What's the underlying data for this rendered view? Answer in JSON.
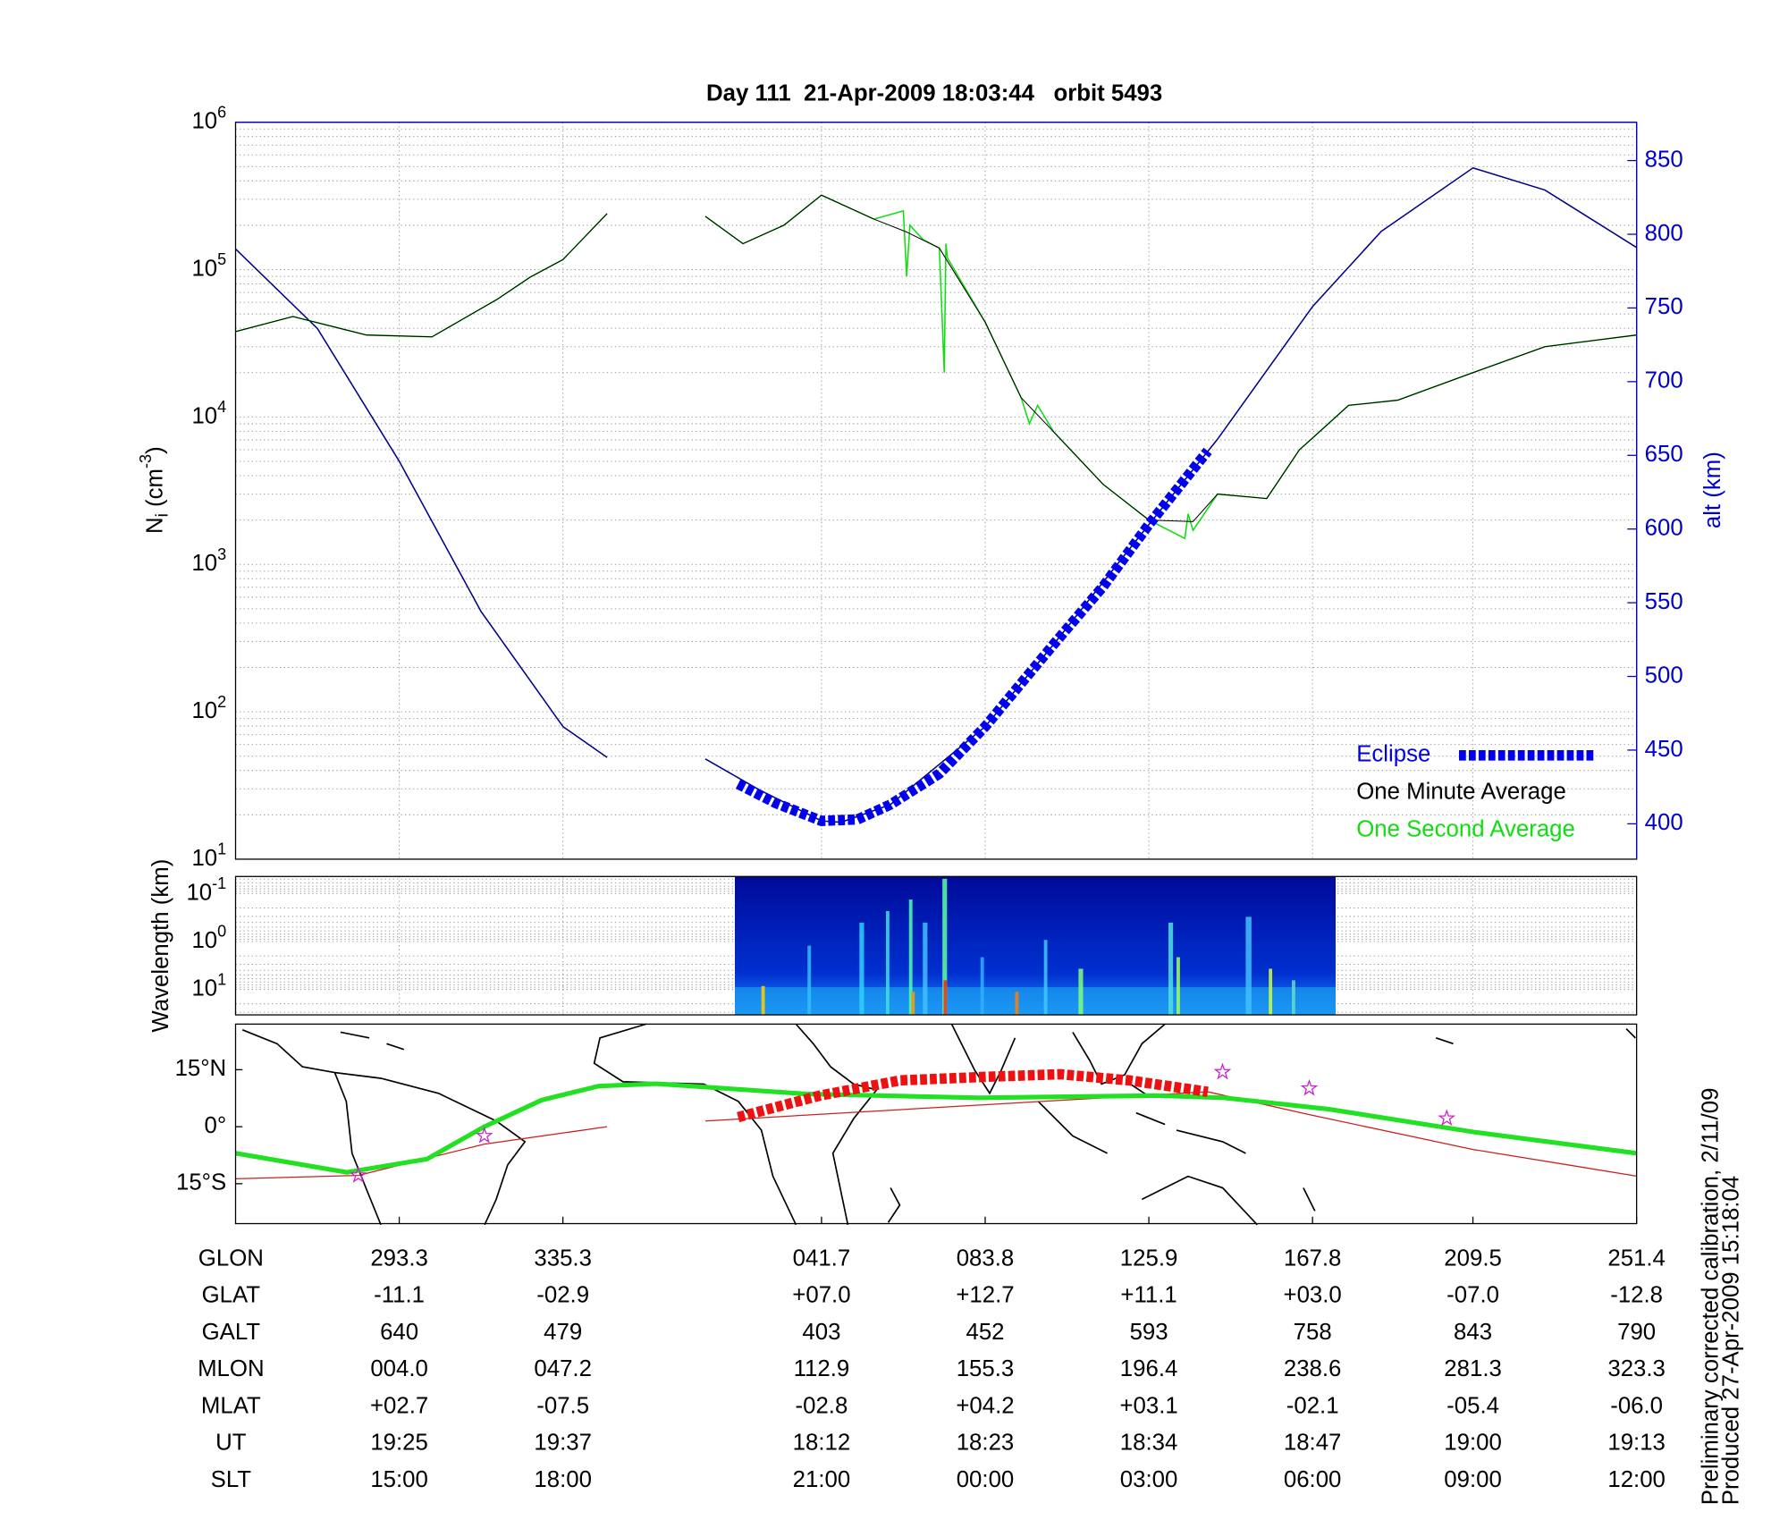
{
  "chart_data": [
    {
      "type": "line",
      "title": "Day 111  21-Apr-2009 18:03:44   orbit 5493",
      "ylabel": {
        "base": "N",
        "sub": "i",
        "unit": " (cm",
        "sup": "-3",
        "end": ")"
      },
      "y2label": "alt (km)",
      "xlim": [
        0,
        8.56
      ],
      "xticks": [
        1,
        2,
        3.58,
        4.58,
        5.58,
        6.58,
        7.56,
        8.56
      ],
      "yscale": "log",
      "ylim": [
        10,
        1000000
      ],
      "yticks": [
        {
          "value": 10,
          "label": "10",
          "sup": "1"
        },
        {
          "value": 100,
          "label": "10",
          "sup": "2"
        },
        {
          "value": 1000,
          "label": "10",
          "sup": "3"
        },
        {
          "value": 10000,
          "label": "10",
          "sup": "4"
        },
        {
          "value": 100000,
          "label": "10",
          "sup": "5"
        },
        {
          "value": 1000000,
          "label": "10",
          "sup": "6"
        }
      ],
      "y2lim": [
        376,
        876
      ],
      "y2ticks": [
        400,
        450,
        500,
        550,
        600,
        650,
        700,
        750,
        800,
        850
      ],
      "y2color": "#0000cc",
      "grid": true,
      "legend": "lower right",
      "series": [
        {
          "name": "Eclipse",
          "color": "#0000ee",
          "axis": "y2",
          "style": "dashed",
          "x": [
            3.07,
            3.3,
            3.58,
            3.8,
            4,
            4.3,
            4.58,
            5,
            5.3,
            5.58,
            5.94
          ],
          "values": [
            427,
            414,
            402,
            403,
            413,
            434,
            466,
            522,
            561,
            603,
            653
          ]
        },
        {
          "name": "One Minute Average",
          "color": "#000000",
          "x": [
            0,
            0.35,
            0.8,
            1.2,
            1.6,
            1.8,
            2,
            2.27,
            2.5,
            2.87,
            3.1,
            3.35,
            3.58,
            3.9,
            4.1,
            4.3,
            4.58,
            4.8,
            5,
            5.3,
            5.58,
            5.85,
            6,
            6.3,
            6.5,
            6.58,
            6.8,
            7.1,
            7.56,
            8,
            8.56
          ],
          "values": [
            38000,
            48000,
            36000,
            35000,
            63000,
            89000,
            117000,
            240000,
            null,
            230000,
            150000,
            200000,
            320000,
            220000,
            180000,
            140000,
            44000,
            13500,
            7900,
            3500,
            2000,
            1950,
            3000,
            2800,
            6000,
            7200,
            12000,
            13000,
            20000,
            30000,
            36000
          ]
        },
        {
          "name": "One Second Average",
          "color": "#11dd11",
          "x": [
            0,
            0.35,
            0.8,
            1.2,
            1.6,
            1.8,
            2,
            2.27,
            2.5,
            2.87,
            3.1,
            3.35,
            3.58,
            3.9,
            4.08,
            4.1,
            4.12,
            4.2,
            4.3,
            4.33,
            4.34,
            4.35,
            4.58,
            4.8,
            4.85,
            4.9,
            5,
            5.3,
            5.58,
            5.8,
            5.82,
            5.85,
            6,
            6.3,
            6.5,
            6.58,
            6.8,
            7.1,
            7.56,
            8,
            8.56
          ],
          "values": [
            38000,
            48000,
            36000,
            35000,
            63000,
            89000,
            117000,
            240000,
            null,
            230000,
            150000,
            200000,
            320000,
            220000,
            250000,
            90000,
            200000,
            160000,
            140000,
            20000,
            150000,
            120000,
            44000,
            13500,
            9000,
            12000,
            7900,
            3500,
            2000,
            1500,
            2200,
            1700,
            3000,
            2800,
            6000,
            7200,
            12000,
            13000,
            20000,
            30000,
            36000
          ]
        },
        {
          "color": "#00008b",
          "axis": "y2",
          "x": [
            0,
            0.5,
            1,
            1.5,
            2,
            2.27,
            2.5,
            2.87,
            3.2,
            3.58,
            3.7,
            4,
            4.58,
            5,
            5.58,
            6,
            6.58,
            7,
            7.56,
            8,
            8.56
          ],
          "values": [
            790,
            736,
            646,
            544,
            466,
            445,
            null,
            444,
            423,
            402,
            401,
            413,
            466,
            522,
            603,
            661,
            751,
            802,
            845,
            830,
            791
          ]
        }
      ]
    },
    {
      "type": "spectrogram",
      "ylabel": "Wavelength (km)",
      "yscale": "log",
      "ylim": [
        0.044,
        34
      ],
      "xlim": [
        0,
        8.56
      ],
      "xticks": [
        1,
        2,
        3.58,
        4.58,
        5.58,
        6.58,
        7.56,
        8.56
      ],
      "yticks": [
        {
          "value": 0.1,
          "label": "10",
          "sup": "-1"
        },
        {
          "value": 1,
          "label": "10",
          "sup": "0"
        },
        {
          "value": 10,
          "label": "10",
          "sup": "1"
        }
      ]
    },
    {
      "type": "map",
      "ylim": [
        -25.5,
        27
      ],
      "xlim": [
        0,
        8.56
      ],
      "xticks": [
        1,
        2,
        3.58,
        4.58,
        5.58,
        6.58,
        7.56,
        8.56
      ],
      "yticks": [
        {
          "value": 15,
          "label": "15°N"
        },
        {
          "value": 0,
          "label": "0°"
        },
        {
          "value": -15,
          "label": "15°S"
        }
      ],
      "series": [
        {
          "color": "#cc2020",
          "width": 1,
          "x": [
            0,
            0.75,
            1.52,
            2.27,
            2.5,
            2.87,
            5.94,
            6.57,
            7.56,
            8.56
          ],
          "values": [
            -13.7,
            -12.8,
            -4.6,
            0,
            null,
            1.5,
            9.2,
            3.1,
            -6,
            -13
          ]
        },
        {
          "color": "#22e022",
          "width": 4,
          "x": [
            0,
            0.68,
            1.17,
            1.52,
            1.87,
            2.22,
            2.57,
            3.49,
            4.54,
            5.63,
            6.04,
            6.68,
            7.58,
            8.56
          ],
          "values": [
            -7,
            -12,
            -8.5,
            0,
            7,
            10.7,
            11.3,
            8.6,
            7.6,
            8.2,
            7.6,
            4.6,
            -1.5,
            -7
          ]
        },
        {
          "color": "#ee1111",
          "width": 9,
          "style": "dashed",
          "x": [
            3.07,
            3.57,
            4.06,
            4.57,
            5.04,
            5.46,
            5.94
          ],
          "values": [
            2.5,
            8.2,
            12.2,
            13.1,
            13.8,
            12.2,
            9.2
          ]
        }
      ],
      "markers": {
        "color": "#cc22cc",
        "x": [
          0.75,
          1.52,
          6.03,
          6.56,
          7.4
        ],
        "values": [
          -12.8,
          -2.4,
          14.4,
          10.1,
          2.2
        ]
      }
    }
  ],
  "table": {
    "rows": [
      {
        "label": "GLON",
        "values": [
          "293.3",
          "335.3",
          "041.7",
          "083.8",
          "125.9",
          "167.8",
          "209.5",
          "251.4"
        ]
      },
      {
        "label": "GLAT",
        "values": [
          "-11.1",
          "-02.9",
          "+07.0",
          "+12.7",
          "+11.1",
          "+03.0",
          "-07.0",
          "-12.8"
        ]
      },
      {
        "label": "GALT",
        "values": [
          "640",
          "479",
          "403",
          "452",
          "593",
          "758",
          "843",
          "790"
        ]
      },
      {
        "label": "MLON",
        "values": [
          "004.0",
          "047.2",
          "112.9",
          "155.3",
          "196.4",
          "238.6",
          "281.3",
          "323.3"
        ]
      },
      {
        "label": "MLAT",
        "values": [
          "+02.7",
          "-07.5",
          "-02.8",
          "+04.2",
          "+03.1",
          "-02.1",
          "-05.4",
          "-06.0"
        ]
      },
      {
        "label": "UT",
        "values": [
          "19:25",
          "19:37",
          "18:12",
          "18:23",
          "18:34",
          "18:47",
          "19:00",
          "19:13"
        ]
      },
      {
        "label": "SLT",
        "values": [
          "15:00",
          "18:00",
          "21:00",
          "00:00",
          "03:00",
          "06:00",
          "09:00",
          "12:00"
        ]
      }
    ]
  },
  "footnotes": [
    "Preliminary corrected calibration, 2/11/09",
    "Produced 27-Apr-2009 15:18:04"
  ]
}
